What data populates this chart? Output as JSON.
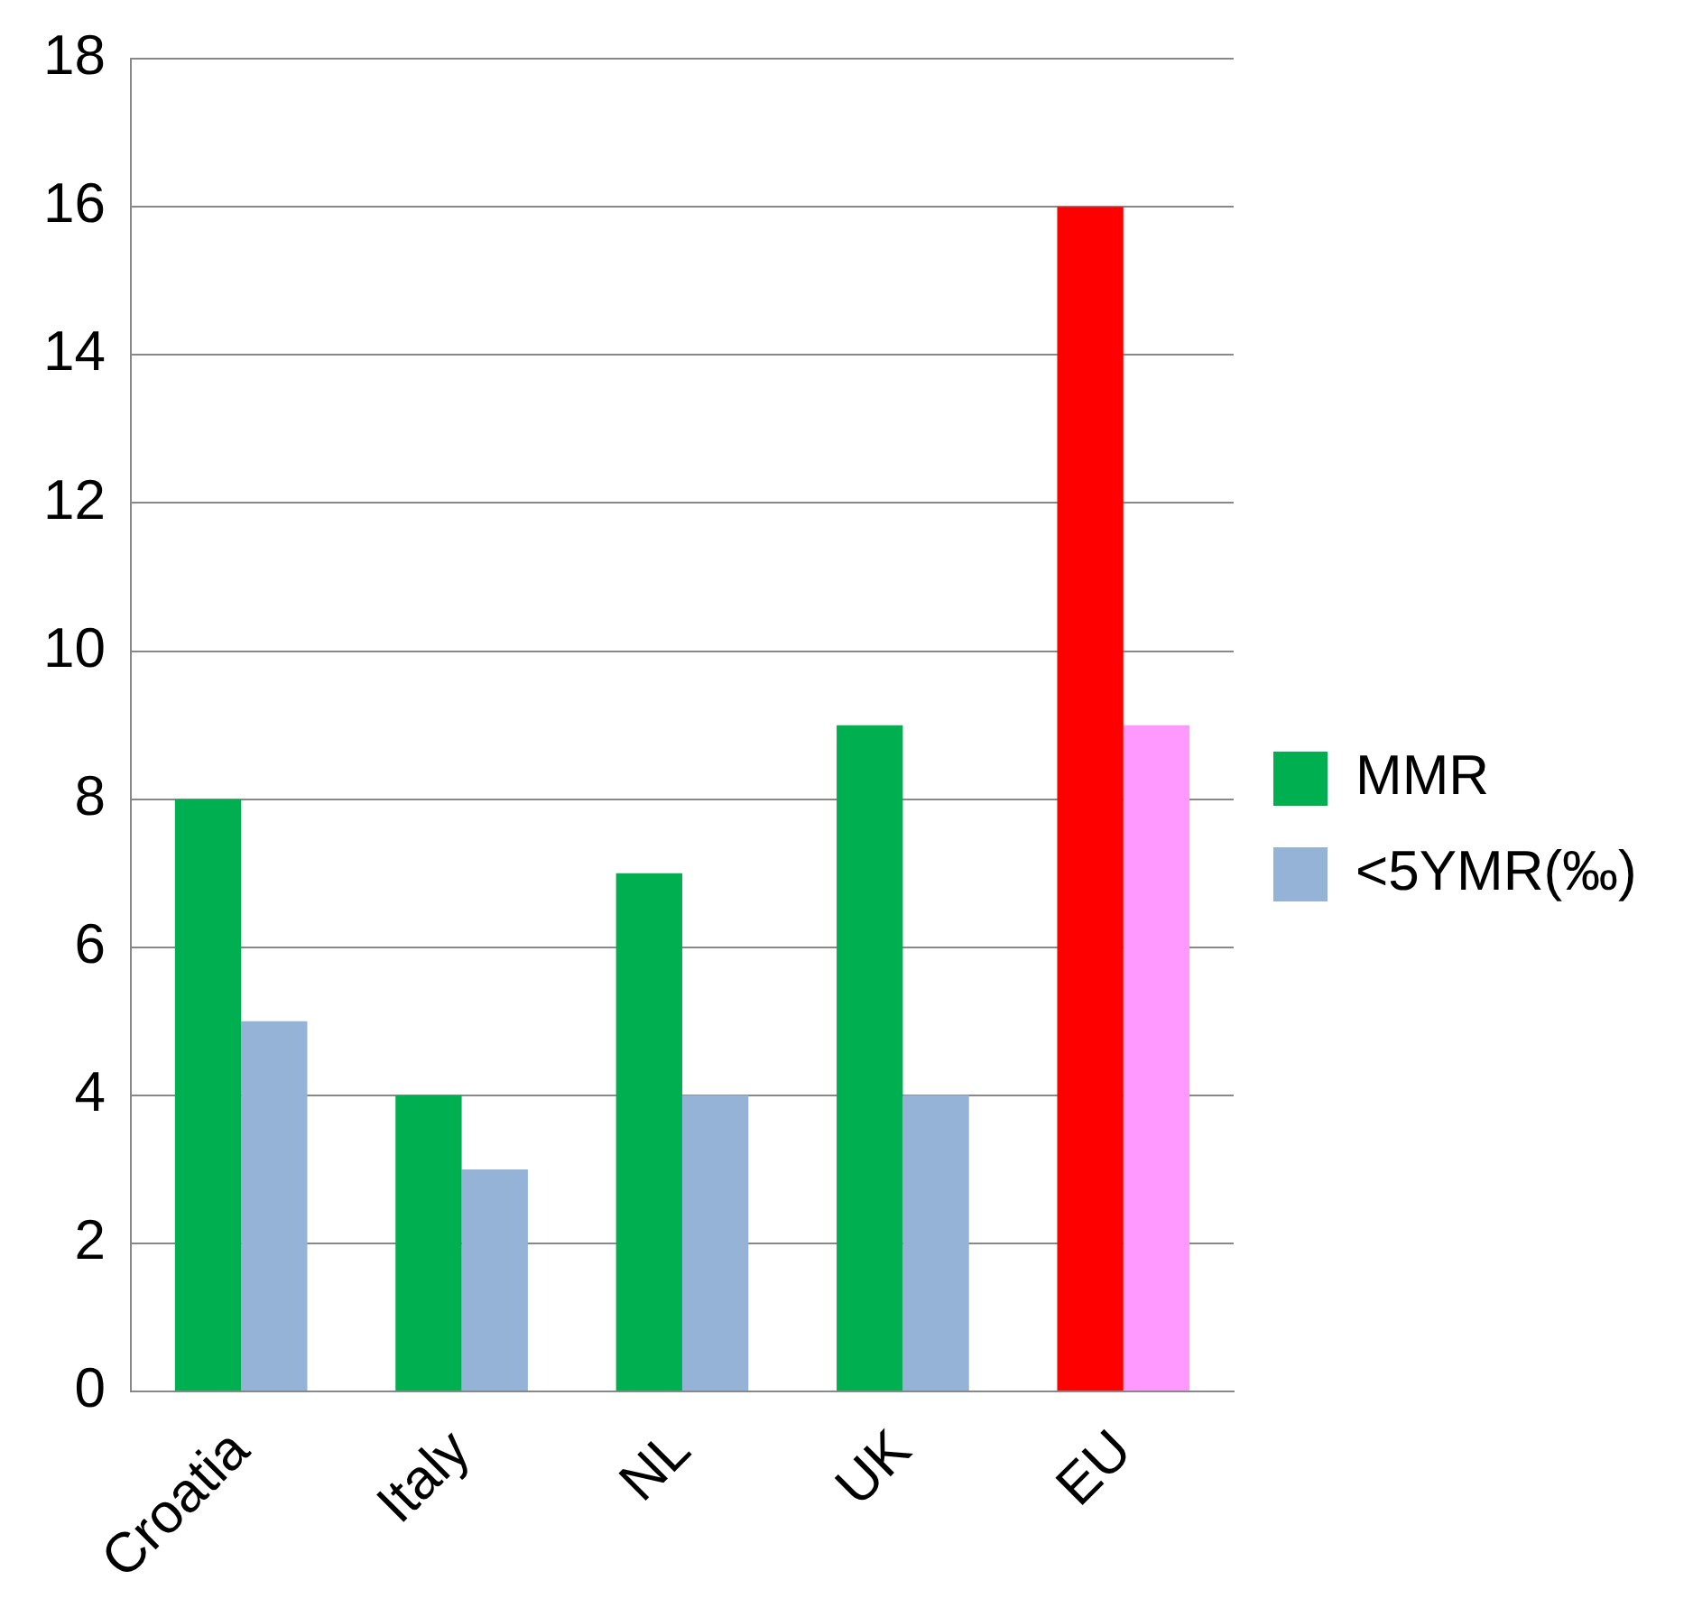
{
  "chart_data": {
    "type": "bar",
    "categories": [
      "Croatia",
      "Italy",
      "NL",
      "UK",
      "EU"
    ],
    "series": [
      {
        "name": "MMR",
        "color": "#00b050",
        "colors": [
          "#00b050",
          "#00b050",
          "#00b050",
          "#00b050",
          "#ff0000"
        ],
        "values": [
          8,
          4,
          7,
          9,
          16
        ]
      },
      {
        "name": "<5YMR(‰)",
        "color": "#95b3d7",
        "colors": [
          "#95b3d7",
          "#95b3d7",
          "#95b3d7",
          "#95b3d7",
          "#ff99ff"
        ],
        "values": [
          5,
          3,
          4,
          4,
          9
        ]
      }
    ],
    "ylim": [
      0,
      18
    ],
    "yticks": [
      0,
      2,
      4,
      6,
      8,
      10,
      12,
      14,
      16,
      18
    ],
    "grid": "y",
    "legend": "right"
  }
}
